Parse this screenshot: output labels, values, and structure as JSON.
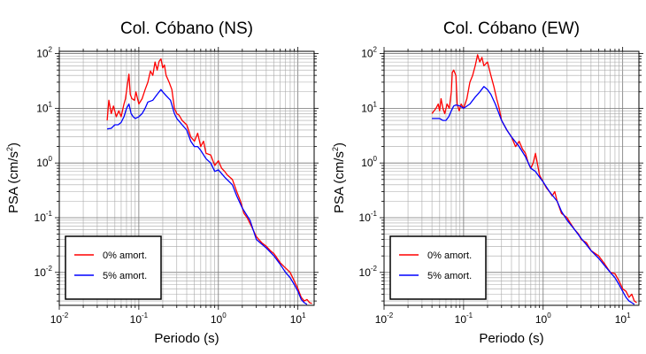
{
  "chart_data": [
    {
      "type": "line",
      "title": "Col. Cóbano (NS)",
      "xlabel": "Periodo (s)",
      "ylabel_main": "PSA (cm/s",
      "ylabel_sup": "2",
      "ylabel_close": ")",
      "xscale": "log",
      "yscale": "log",
      "xlim": [
        0.01,
        16
      ],
      "ylim": [
        0.0025,
        110
      ],
      "xticks": [
        {
          "value": 0.01,
          "base": "10",
          "exp": "-2"
        },
        {
          "value": 0.1,
          "base": "10",
          "exp": "-1"
        },
        {
          "value": 1,
          "base": "10",
          "exp": "0"
        },
        {
          "value": 10,
          "base": "10",
          "exp": "1"
        }
      ],
      "yticks": [
        {
          "value": 0.01,
          "base": "10",
          "exp": "-2"
        },
        {
          "value": 0.1,
          "base": "10",
          "exp": "-1"
        },
        {
          "value": 1,
          "base": "10",
          "exp": "0"
        },
        {
          "value": 10,
          "base": "10",
          "exp": "1"
        },
        {
          "value": 100,
          "base": "10",
          "exp": "2"
        }
      ],
      "grid": true,
      "legend_position": "bottom-left",
      "series": [
        {
          "name": "0% amort.",
          "color": "#ff0000",
          "points": [
            [
              0.04,
              6
            ],
            [
              0.042,
              14
            ],
            [
              0.045,
              8
            ],
            [
              0.048,
              11
            ],
            [
              0.052,
              7
            ],
            [
              0.056,
              9
            ],
            [
              0.06,
              7
            ],
            [
              0.065,
              12
            ],
            [
              0.068,
              15
            ],
            [
              0.072,
              28
            ],
            [
              0.075,
              42
            ],
            [
              0.078,
              18
            ],
            [
              0.082,
              15
            ],
            [
              0.088,
              14
            ],
            [
              0.092,
              20
            ],
            [
              0.1,
              12
            ],
            [
              0.11,
              15
            ],
            [
              0.12,
              22
            ],
            [
              0.13,
              30
            ],
            [
              0.14,
              48
            ],
            [
              0.15,
              40
            ],
            [
              0.16,
              70
            ],
            [
              0.17,
              50
            ],
            [
              0.18,
              72
            ],
            [
              0.19,
              80
            ],
            [
              0.2,
              55
            ],
            [
              0.21,
              62
            ],
            [
              0.22,
              40
            ],
            [
              0.24,
              30
            ],
            [
              0.26,
              22
            ],
            [
              0.28,
              10
            ],
            [
              0.3,
              8
            ],
            [
              0.32,
              7.5
            ],
            [
              0.35,
              6
            ],
            [
              0.4,
              5
            ],
            [
              0.45,
              3
            ],
            [
              0.5,
              2.5
            ],
            [
              0.55,
              3.5
            ],
            [
              0.6,
              2
            ],
            [
              0.65,
              2.5
            ],
            [
              0.7,
              1.5
            ],
            [
              0.8,
              1.4
            ],
            [
              0.9,
              0.9
            ],
            [
              1,
              1.1
            ],
            [
              1.1,
              0.8
            ],
            [
              1.2,
              0.7
            ],
            [
              1.3,
              0.6
            ],
            [
              1.5,
              0.5
            ],
            [
              1.7,
              0.3
            ],
            [
              1.9,
              0.2
            ],
            [
              2.1,
              0.12
            ],
            [
              2.3,
              0.1
            ],
            [
              2.6,
              0.07
            ],
            [
              3,
              0.045
            ],
            [
              3.5,
              0.035
            ],
            [
              4,
              0.03
            ],
            [
              4.5,
              0.025
            ],
            [
              5,
              0.022
            ],
            [
              6,
              0.015
            ],
            [
              7,
              0.012
            ],
            [
              8,
              0.01
            ],
            [
              9,
              0.007
            ],
            [
              10,
              0.005
            ],
            [
              11,
              0.0035
            ],
            [
              12,
              0.003
            ],
            [
              13,
              0.0032
            ],
            [
              14,
              0.0028
            ],
            [
              15,
              0.0027
            ]
          ]
        },
        {
          "name": "5% amort.",
          "color": "#0000ff",
          "points": [
            [
              0.04,
              4.2
            ],
            [
              0.045,
              4.3
            ],
            [
              0.05,
              5
            ],
            [
              0.055,
              5
            ],
            [
              0.06,
              5.5
            ],
            [
              0.065,
              7
            ],
            [
              0.07,
              10
            ],
            [
              0.075,
              12
            ],
            [
              0.08,
              8
            ],
            [
              0.085,
              7
            ],
            [
              0.09,
              6.5
            ],
            [
              0.1,
              7
            ],
            [
              0.11,
              8
            ],
            [
              0.12,
              10
            ],
            [
              0.13,
              13
            ],
            [
              0.15,
              14
            ],
            [
              0.17,
              18
            ],
            [
              0.19,
              22
            ],
            [
              0.2,
              20
            ],
            [
              0.22,
              17
            ],
            [
              0.25,
              14
            ],
            [
              0.28,
              8
            ],
            [
              0.3,
              6.5
            ],
            [
              0.35,
              5
            ],
            [
              0.4,
              4
            ],
            [
              0.45,
              2.5
            ],
            [
              0.5,
              2
            ],
            [
              0.55,
              2
            ],
            [
              0.6,
              1.7
            ],
            [
              0.7,
              1.2
            ],
            [
              0.8,
              1
            ],
            [
              0.9,
              0.7
            ],
            [
              1,
              0.75
            ],
            [
              1.2,
              0.55
            ],
            [
              1.5,
              0.4
            ],
            [
              1.7,
              0.25
            ],
            [
              2,
              0.15
            ],
            [
              2.5,
              0.09
            ],
            [
              3,
              0.04
            ],
            [
              3.5,
              0.033
            ],
            [
              4,
              0.028
            ],
            [
              5,
              0.02
            ],
            [
              6,
              0.014
            ],
            [
              7,
              0.01
            ],
            [
              8,
              0.008
            ],
            [
              9,
              0.006
            ],
            [
              10,
              0.0045
            ],
            [
              11,
              0.0032
            ],
            [
              12,
              0.0028
            ],
            [
              13,
              0.0026
            ]
          ]
        }
      ]
    },
    {
      "type": "line",
      "title": "Col. Cóbano (EW)",
      "xlabel": "Periodo (s)",
      "ylabel_main": "PSA (cm/s",
      "ylabel_sup": "2",
      "ylabel_close": ")",
      "xscale": "log",
      "yscale": "log",
      "xlim": [
        0.01,
        16
      ],
      "ylim": [
        0.0025,
        110
      ],
      "xticks": [
        {
          "value": 0.01,
          "base": "10",
          "exp": "-2"
        },
        {
          "value": 0.1,
          "base": "10",
          "exp": "-1"
        },
        {
          "value": 1,
          "base": "10",
          "exp": "0"
        },
        {
          "value": 10,
          "base": "10",
          "exp": "1"
        }
      ],
      "yticks": [
        {
          "value": 0.01,
          "base": "10",
          "exp": "-2"
        },
        {
          "value": 0.1,
          "base": "10",
          "exp": "-1"
        },
        {
          "value": 1,
          "base": "10",
          "exp": "0"
        },
        {
          "value": 10,
          "base": "10",
          "exp": "1"
        },
        {
          "value": 100,
          "base": "10",
          "exp": "2"
        }
      ],
      "grid": true,
      "legend_position": "bottom-left",
      "series": [
        {
          "name": "0% amort.",
          "color": "#ff0000",
          "points": [
            [
              0.04,
              8
            ],
            [
              0.045,
              10
            ],
            [
              0.048,
              12
            ],
            [
              0.05,
              9
            ],
            [
              0.052,
              15
            ],
            [
              0.055,
              10
            ],
            [
              0.058,
              8
            ],
            [
              0.062,
              12
            ],
            [
              0.066,
              10
            ],
            [
              0.07,
              20
            ],
            [
              0.072,
              45
            ],
            [
              0.075,
              50
            ],
            [
              0.08,
              40
            ],
            [
              0.083,
              12
            ],
            [
              0.088,
              9
            ],
            [
              0.093,
              12
            ],
            [
              0.1,
              10
            ],
            [
              0.11,
              15
            ],
            [
              0.12,
              30
            ],
            [
              0.13,
              40
            ],
            [
              0.14,
              60
            ],
            [
              0.15,
              95
            ],
            [
              0.16,
              70
            ],
            [
              0.17,
              85
            ],
            [
              0.18,
              60
            ],
            [
              0.2,
              70
            ],
            [
              0.22,
              40
            ],
            [
              0.24,
              25
            ],
            [
              0.26,
              15
            ],
            [
              0.28,
              10
            ],
            [
              0.3,
              6
            ],
            [
              0.35,
              4
            ],
            [
              0.4,
              3
            ],
            [
              0.45,
              2
            ],
            [
              0.5,
              2.5
            ],
            [
              0.55,
              1.8
            ],
            [
              0.6,
              1.5
            ],
            [
              0.65,
              1
            ],
            [
              0.7,
              0.8
            ],
            [
              0.75,
              1
            ],
            [
              0.8,
              1.5
            ],
            [
              0.9,
              0.6
            ],
            [
              1,
              0.45
            ],
            [
              1.1,
              0.35
            ],
            [
              1.2,
              0.3
            ],
            [
              1.3,
              0.25
            ],
            [
              1.4,
              0.3
            ],
            [
              1.5,
              0.2
            ],
            [
              1.7,
              0.12
            ],
            [
              2,
              0.1
            ],
            [
              2.2,
              0.08
            ],
            [
              2.5,
              0.06
            ],
            [
              2.8,
              0.05
            ],
            [
              3,
              0.04
            ],
            [
              3.5,
              0.035
            ],
            [
              4,
              0.025
            ],
            [
              5,
              0.02
            ],
            [
              6,
              0.014
            ],
            [
              7,
              0.01
            ],
            [
              8,
              0.0095
            ],
            [
              9,
              0.007
            ],
            [
              10,
              0.005
            ],
            [
              11,
              0.0045
            ],
            [
              12,
              0.0035
            ],
            [
              13,
              0.004
            ],
            [
              14,
              0.003
            ],
            [
              15,
              0.0028
            ]
          ]
        },
        {
          "name": "5% amort.",
          "color": "#0000ff",
          "points": [
            [
              0.04,
              6.5
            ],
            [
              0.05,
              6.5
            ],
            [
              0.055,
              6
            ],
            [
              0.06,
              6
            ],
            [
              0.065,
              7
            ],
            [
              0.07,
              9
            ],
            [
              0.075,
              11
            ],
            [
              0.08,
              11.5
            ],
            [
              0.09,
              11
            ],
            [
              0.1,
              10
            ],
            [
              0.12,
              12
            ],
            [
              0.14,
              16
            ],
            [
              0.16,
              20
            ],
            [
              0.18,
              25
            ],
            [
              0.2,
              22
            ],
            [
              0.22,
              18
            ],
            [
              0.25,
              12
            ],
            [
              0.3,
              6
            ],
            [
              0.35,
              4
            ],
            [
              0.4,
              3
            ],
            [
              0.5,
              2
            ],
            [
              0.6,
              1.3
            ],
            [
              0.7,
              0.8
            ],
            [
              0.8,
              0.7
            ],
            [
              0.9,
              0.55
            ],
            [
              1,
              0.45
            ],
            [
              1.2,
              0.3
            ],
            [
              1.5,
              0.2
            ],
            [
              1.7,
              0.13
            ],
            [
              2,
              0.09
            ],
            [
              2.5,
              0.06
            ],
            [
              3,
              0.042
            ],
            [
              3.5,
              0.032
            ],
            [
              4,
              0.025
            ],
            [
              5,
              0.018
            ],
            [
              6,
              0.013
            ],
            [
              7,
              0.01
            ],
            [
              8,
              0.008
            ],
            [
              9,
              0.006
            ],
            [
              10,
              0.0045
            ],
            [
              11,
              0.0035
            ],
            [
              12,
              0.003
            ],
            [
              13,
              0.0028
            ],
            [
              14,
              0.0026
            ]
          ]
        }
      ]
    }
  ]
}
